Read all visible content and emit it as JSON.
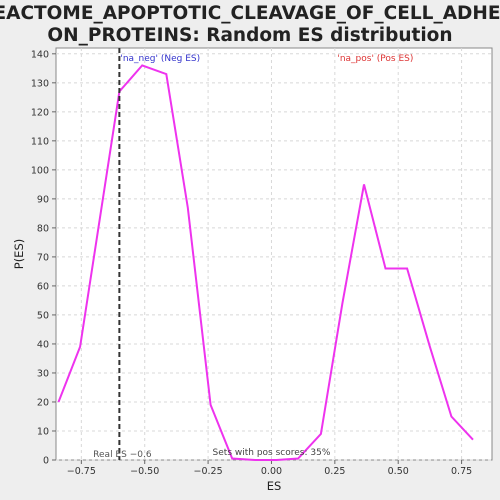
{
  "chart_data": {
    "type": "line",
    "title_lines": [
      "REACTOME_APOPTOTIC_CLEAVAGE_OF_CELL_ADHESI",
      "ON_PROTEINS: Random ES distribution"
    ],
    "xlabel": "ES",
    "ylabel": "P(ES)",
    "xlim": [
      -0.85,
      0.87
    ],
    "ylim": [
      0,
      142
    ],
    "x_ticks": [
      -0.75,
      -0.5,
      -0.25,
      0.0,
      0.25,
      0.5,
      0.75
    ],
    "x_tick_labels": [
      "−0.75",
      "−0.50",
      "−0.25",
      "0.00",
      "0.25",
      "0.50",
      "0.75"
    ],
    "y_ticks": [
      0,
      10,
      20,
      30,
      40,
      50,
      60,
      70,
      80,
      90,
      100,
      110,
      120,
      130,
      140
    ],
    "grid": true,
    "series": [
      {
        "color": "#ee33ee",
        "x": [
          -0.84,
          -0.755,
          -0.6,
          -0.51,
          -0.415,
          -0.33,
          -0.24,
          -0.155,
          -0.065,
          0.02,
          0.105,
          0.195,
          0.28,
          0.365,
          0.45,
          0.535,
          0.625,
          0.71,
          0.795
        ],
        "y": [
          20,
          39,
          127,
          136,
          133,
          87,
          19,
          0.5,
          0,
          0,
          0.5,
          9,
          54,
          95,
          66,
          66,
          39,
          15,
          7
        ]
      }
    ],
    "real_es": {
      "x": -0.6,
      "label": "Real ES −0.6",
      "color": "#333333"
    },
    "annotations": {
      "neg_label": "'na_neg' (Neg ES)",
      "neg_color": "#3333cc",
      "pos_label": "'na_pos' (Pos ES)",
      "pos_color": "#dd3333",
      "sets_text": "Sets with pos scores: 35%"
    }
  }
}
